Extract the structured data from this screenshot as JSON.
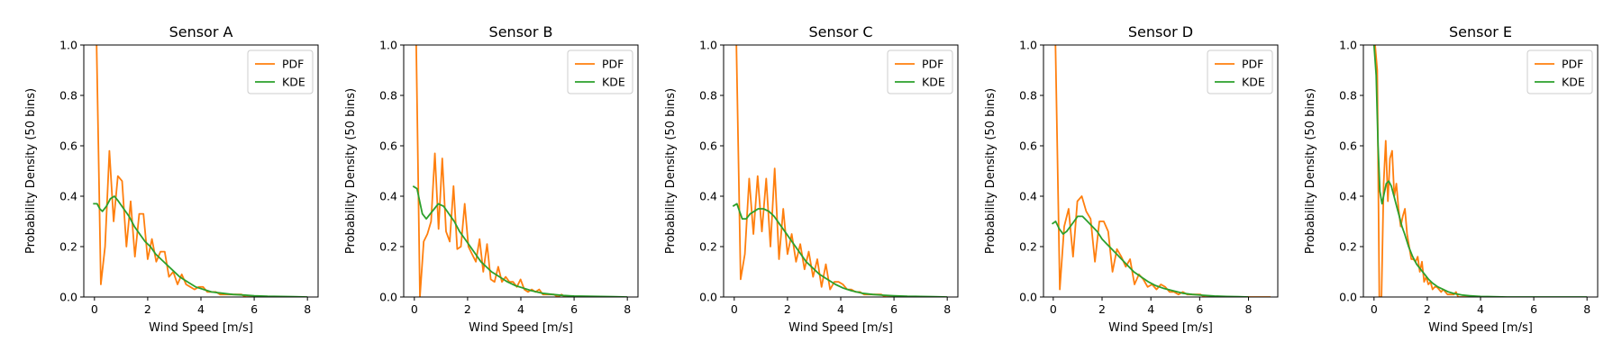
{
  "colors": {
    "pdf": "#ff7f0e",
    "kde": "#2ca02c",
    "axes": "#000000",
    "legend_border": "#cccccc"
  },
  "chart_data": [
    {
      "type": "line",
      "title": "Sensor A",
      "xlabel": "Wind Speed [m/s]",
      "ylabel": "Probability Density (50 bins)",
      "xlim": [
        -0.4,
        8.4
      ],
      "ylim": [
        0,
        1.0
      ],
      "xticks": [
        0,
        2,
        4,
        6,
        8
      ],
      "yticks": [
        0.0,
        0.2,
        0.4,
        0.6,
        0.8,
        1.0
      ],
      "tick_labels_x": [
        "0",
        "2",
        "4",
        "6",
        "8"
      ],
      "tick_labels_y": [
        "0.0",
        "0.2",
        "0.4",
        "0.6",
        "0.8",
        "1.0"
      ],
      "legend": "top-right",
      "grid": false,
      "series": [
        {
          "name": "PDF",
          "color_key": "pdf",
          "x": [
            0.08,
            0.24,
            0.4,
            0.56,
            0.72,
            0.88,
            1.04,
            1.2,
            1.36,
            1.52,
            1.68,
            1.84,
            2.0,
            2.16,
            2.32,
            2.48,
            2.64,
            2.8,
            2.96,
            3.12,
            3.28,
            3.44,
            3.6,
            3.76,
            3.92,
            4.08,
            4.24,
            4.4,
            4.56,
            4.72,
            4.88,
            5.04,
            5.2,
            5.36,
            5.52,
            5.68,
            5.84,
            6.0,
            6.16,
            6.32,
            6.48,
            6.64,
            6.8,
            6.96,
            7.12,
            7.28,
            7.44,
            7.6,
            7.76,
            7.92
          ],
          "y": [
            1.0,
            0.05,
            0.2,
            0.58,
            0.3,
            0.48,
            0.46,
            0.2,
            0.38,
            0.16,
            0.33,
            0.33,
            0.15,
            0.23,
            0.14,
            0.18,
            0.18,
            0.08,
            0.1,
            0.05,
            0.09,
            0.05,
            0.04,
            0.03,
            0.04,
            0.04,
            0.02,
            0.02,
            0.02,
            0.01,
            0.01,
            0.01,
            0.01,
            0.01,
            0.01,
            0.0,
            0.0,
            0.0,
            0.0,
            0.0,
            0.0,
            0.0,
            0.0,
            0.0,
            0.0,
            0.0,
            0.0,
            0.0,
            0.0,
            0.0
          ]
        },
        {
          "name": "KDE",
          "color_key": "kde",
          "x": [
            -0.05,
            0.1,
            0.2,
            0.3,
            0.45,
            0.6,
            0.75,
            0.9,
            1.1,
            1.3,
            1.5,
            1.7,
            1.9,
            2.1,
            2.3,
            2.5,
            2.7,
            2.9,
            3.2,
            3.5,
            3.8,
            4.1,
            4.4,
            4.8,
            5.2,
            5.6,
            6.0,
            6.5,
            7.0,
            7.5,
            8.0
          ],
          "y": [
            0.37,
            0.37,
            0.35,
            0.34,
            0.36,
            0.39,
            0.4,
            0.38,
            0.35,
            0.32,
            0.28,
            0.25,
            0.22,
            0.2,
            0.17,
            0.15,
            0.13,
            0.11,
            0.08,
            0.06,
            0.04,
            0.03,
            0.02,
            0.015,
            0.01,
            0.008,
            0.005,
            0.003,
            0.002,
            0.001,
            0.0
          ]
        }
      ]
    },
    {
      "type": "line",
      "title": "Sensor B",
      "xlabel": "Wind Speed [m/s]",
      "ylabel": "Probability Density (50 bins)",
      "xlim": [
        -0.4,
        8.4
      ],
      "ylim": [
        0,
        1.0
      ],
      "xticks": [
        0,
        2,
        4,
        6,
        8
      ],
      "yticks": [
        0.0,
        0.2,
        0.4,
        0.6,
        0.8,
        1.0
      ],
      "tick_labels_x": [
        "0",
        "2",
        "4",
        "6",
        "8"
      ],
      "tick_labels_y": [
        "0.0",
        "0.2",
        "0.4",
        "0.6",
        "0.8",
        "1.0"
      ],
      "legend": "top-right",
      "grid": false,
      "series": [
        {
          "name": "PDF",
          "color_key": "pdf",
          "x": [
            0.07,
            0.21,
            0.35,
            0.49,
            0.63,
            0.77,
            0.91,
            1.05,
            1.19,
            1.33,
            1.47,
            1.61,
            1.75,
            1.89,
            2.03,
            2.17,
            2.31,
            2.45,
            2.59,
            2.73,
            2.87,
            3.01,
            3.15,
            3.29,
            3.43,
            3.57,
            3.71,
            3.85,
            3.99,
            4.13,
            4.27,
            4.41,
            4.55,
            4.69,
            4.83,
            4.97,
            5.11,
            5.25,
            5.39,
            5.53,
            5.67,
            5.81,
            5.95,
            6.09,
            6.23,
            6.37,
            6.51,
            6.65,
            6.79,
            6.93
          ],
          "y": [
            1.0,
            0.0,
            0.22,
            0.25,
            0.3,
            0.57,
            0.27,
            0.55,
            0.26,
            0.22,
            0.44,
            0.19,
            0.2,
            0.37,
            0.2,
            0.17,
            0.14,
            0.23,
            0.1,
            0.21,
            0.07,
            0.06,
            0.12,
            0.06,
            0.08,
            0.06,
            0.06,
            0.04,
            0.07,
            0.03,
            0.02,
            0.03,
            0.02,
            0.03,
            0.01,
            0.01,
            0.01,
            0.01,
            0.0,
            0.01,
            0.0,
            0.0,
            0.0,
            0.0,
            0.0,
            0.0,
            0.0,
            0.0,
            0.0,
            0.0
          ]
        },
        {
          "name": "KDE",
          "color_key": "kde",
          "x": [
            -0.05,
            0.1,
            0.2,
            0.3,
            0.45,
            0.6,
            0.75,
            0.9,
            1.1,
            1.3,
            1.5,
            1.7,
            1.9,
            2.1,
            2.3,
            2.5,
            2.7,
            2.9,
            3.2,
            3.5,
            3.8,
            4.1,
            4.4,
            4.8,
            5.2,
            5.6,
            6.0,
            6.5,
            7.0,
            7.5,
            8.0
          ],
          "y": [
            0.44,
            0.43,
            0.38,
            0.33,
            0.31,
            0.33,
            0.35,
            0.37,
            0.36,
            0.33,
            0.3,
            0.26,
            0.23,
            0.2,
            0.17,
            0.14,
            0.12,
            0.1,
            0.08,
            0.06,
            0.045,
            0.035,
            0.025,
            0.015,
            0.01,
            0.006,
            0.004,
            0.003,
            0.002,
            0.001,
            0.0
          ]
        }
      ]
    },
    {
      "type": "line",
      "title": "Sensor C",
      "xlabel": "Wind Speed [m/s]",
      "ylabel": "Probability Density (50 bins)",
      "xlim": [
        -0.4,
        8.4
      ],
      "ylim": [
        0,
        1.0
      ],
      "xticks": [
        0,
        2,
        4,
        6,
        8
      ],
      "yticks": [
        0.0,
        0.2,
        0.4,
        0.6,
        0.8,
        1.0
      ],
      "tick_labels_x": [
        "0",
        "2",
        "4",
        "6",
        "8"
      ],
      "tick_labels_y": [
        "0.0",
        "0.2",
        "0.4",
        "0.6",
        "0.8",
        "1.0"
      ],
      "legend": "top-right",
      "grid": false,
      "series": [
        {
          "name": "PDF",
          "color_key": "pdf",
          "x": [
            0.08,
            0.24,
            0.4,
            0.56,
            0.72,
            0.88,
            1.04,
            1.2,
            1.36,
            1.52,
            1.68,
            1.84,
            2.0,
            2.16,
            2.32,
            2.48,
            2.64,
            2.8,
            2.96,
            3.12,
            3.28,
            3.44,
            3.6,
            3.76,
            3.92,
            4.08,
            4.24,
            4.4,
            4.56,
            4.72,
            4.88,
            5.04,
            5.2,
            5.36,
            5.52,
            5.68,
            5.84,
            6.0,
            6.16,
            6.32,
            6.48,
            6.64,
            6.8,
            6.96,
            7.12,
            7.28,
            7.44,
            7.6,
            7.76,
            7.92
          ],
          "y": [
            1.0,
            0.07,
            0.17,
            0.47,
            0.25,
            0.48,
            0.26,
            0.47,
            0.2,
            0.51,
            0.15,
            0.35,
            0.17,
            0.25,
            0.14,
            0.21,
            0.11,
            0.18,
            0.08,
            0.15,
            0.04,
            0.13,
            0.03,
            0.06,
            0.06,
            0.05,
            0.03,
            0.03,
            0.02,
            0.02,
            0.01,
            0.01,
            0.01,
            0.01,
            0.01,
            0.0,
            0.0,
            0.0,
            0.0,
            0.0,
            0.0,
            0.0,
            0.0,
            0.0,
            0.0,
            0.0,
            0.0,
            0.0,
            0.0,
            0.0
          ]
        },
        {
          "name": "KDE",
          "color_key": "kde",
          "x": [
            -0.05,
            0.1,
            0.2,
            0.3,
            0.45,
            0.6,
            0.75,
            0.9,
            1.1,
            1.3,
            1.5,
            1.7,
            1.9,
            2.1,
            2.3,
            2.5,
            2.7,
            2.9,
            3.2,
            3.5,
            3.8,
            4.1,
            4.4,
            4.8,
            5.2,
            5.6,
            6.0,
            6.5,
            7.0,
            7.5,
            8.0
          ],
          "y": [
            0.36,
            0.37,
            0.34,
            0.31,
            0.31,
            0.33,
            0.34,
            0.35,
            0.35,
            0.34,
            0.32,
            0.29,
            0.26,
            0.23,
            0.2,
            0.17,
            0.14,
            0.12,
            0.09,
            0.07,
            0.05,
            0.035,
            0.025,
            0.015,
            0.01,
            0.007,
            0.005,
            0.003,
            0.002,
            0.001,
            0.0
          ]
        }
      ]
    },
    {
      "type": "line",
      "title": "Sensor D",
      "xlabel": "Wind Speed [m/s]",
      "ylabel": "Probability Density (50 bins)",
      "xlim": [
        -0.4,
        9.2
      ],
      "ylim": [
        0,
        1.0
      ],
      "xticks": [
        0,
        2,
        4,
        6,
        8
      ],
      "yticks": [
        0.0,
        0.2,
        0.4,
        0.6,
        0.8,
        1.0
      ],
      "tick_labels_x": [
        "0",
        "2",
        "4",
        "6",
        "8"
      ],
      "tick_labels_y": [
        "0.0",
        "0.2",
        "0.4",
        "0.6",
        "0.8",
        "1.0"
      ],
      "legend": "top-right",
      "grid": false,
      "series": [
        {
          "name": "PDF",
          "color_key": "pdf",
          "x": [
            0.09,
            0.27,
            0.45,
            0.63,
            0.81,
            0.99,
            1.17,
            1.35,
            1.53,
            1.71,
            1.89,
            2.07,
            2.25,
            2.43,
            2.61,
            2.79,
            2.97,
            3.15,
            3.33,
            3.51,
            3.69,
            3.87,
            4.05,
            4.23,
            4.41,
            4.59,
            4.77,
            4.95,
            5.13,
            5.31,
            5.49,
            5.67,
            5.85,
            6.03,
            6.21,
            6.39,
            6.57,
            6.75,
            6.93,
            7.11,
            7.29,
            7.47,
            7.65,
            7.83,
            8.01,
            8.19,
            8.37,
            8.55,
            8.73,
            8.91
          ],
          "y": [
            1.0,
            0.03,
            0.28,
            0.35,
            0.16,
            0.38,
            0.4,
            0.34,
            0.31,
            0.14,
            0.3,
            0.3,
            0.26,
            0.1,
            0.19,
            0.16,
            0.12,
            0.15,
            0.05,
            0.09,
            0.07,
            0.04,
            0.05,
            0.03,
            0.05,
            0.04,
            0.02,
            0.02,
            0.01,
            0.02,
            0.01,
            0.01,
            0.01,
            0.01,
            0.0,
            0.0,
            0.0,
            0.0,
            0.0,
            0.0,
            0.0,
            0.0,
            0.0,
            0.0,
            0.0,
            0.0,
            0.0,
            0.0,
            0.0,
            0.0
          ]
        },
        {
          "name": "KDE",
          "color_key": "kde",
          "x": [
            -0.05,
            0.1,
            0.25,
            0.4,
            0.55,
            0.7,
            0.85,
            1.0,
            1.2,
            1.4,
            1.6,
            1.8,
            2.0,
            2.2,
            2.4,
            2.6,
            2.8,
            3.0,
            3.3,
            3.6,
            3.9,
            4.2,
            4.5,
            4.9,
            5.3,
            5.7,
            6.1,
            6.6,
            7.1,
            7.6,
            8.0
          ],
          "y": [
            0.29,
            0.3,
            0.27,
            0.25,
            0.26,
            0.28,
            0.3,
            0.32,
            0.32,
            0.3,
            0.28,
            0.26,
            0.23,
            0.21,
            0.19,
            0.17,
            0.15,
            0.13,
            0.1,
            0.08,
            0.06,
            0.045,
            0.035,
            0.025,
            0.015,
            0.01,
            0.007,
            0.004,
            0.002,
            0.001,
            0.0
          ]
        }
      ]
    },
    {
      "type": "line",
      "title": "Sensor E",
      "xlabel": "Wind Speed [m/s]",
      "ylabel": "Probability Density (50 bins)",
      "xlim": [
        -0.4,
        8.4
      ],
      "ylim": [
        0,
        1.0
      ],
      "xticks": [
        0,
        2,
        4,
        6,
        8
      ],
      "yticks": [
        0.0,
        0.2,
        0.4,
        0.6,
        0.8,
        1.0
      ],
      "tick_labels_x": [
        "0",
        "2",
        "4",
        "6",
        "8"
      ],
      "tick_labels_y": [
        "0.0",
        "0.2",
        "0.4",
        "0.6",
        "0.8",
        "1.0"
      ],
      "legend": "top-right",
      "grid": false,
      "series": [
        {
          "name": "PDF",
          "color_key": "pdf",
          "x": [
            0.04,
            0.12,
            0.2,
            0.28,
            0.36,
            0.44,
            0.52,
            0.6,
            0.68,
            0.76,
            0.84,
            0.92,
            1.0,
            1.08,
            1.16,
            1.24,
            1.32,
            1.4,
            1.48,
            1.56,
            1.64,
            1.72,
            1.8,
            1.88,
            1.96,
            2.04,
            2.12,
            2.2,
            2.28,
            2.36,
            2.44,
            2.52,
            2.6,
            2.68,
            2.76,
            2.84,
            2.92,
            3.0,
            3.08,
            3.16,
            3.24,
            3.32,
            3.4,
            3.48,
            3.56,
            3.64,
            3.72,
            3.8,
            3.88,
            3.96
          ],
          "y": [
            1.0,
            0.9,
            0.0,
            0.0,
            0.45,
            0.62,
            0.38,
            0.55,
            0.58,
            0.4,
            0.45,
            0.35,
            0.28,
            0.32,
            0.35,
            0.25,
            0.2,
            0.15,
            0.15,
            0.14,
            0.16,
            0.1,
            0.14,
            0.06,
            0.08,
            0.05,
            0.06,
            0.03,
            0.04,
            0.04,
            0.03,
            0.02,
            0.03,
            0.02,
            0.01,
            0.01,
            0.01,
            0.01,
            0.02,
            0.0,
            0.0,
            0.0,
            0.0,
            0.0,
            0.0,
            0.0,
            0.0,
            0.0,
            0.0,
            0.0
          ]
        },
        {
          "name": "KDE",
          "color_key": "kde",
          "x": [
            0.0,
            0.08,
            0.15,
            0.22,
            0.3,
            0.38,
            0.46,
            0.55,
            0.65,
            0.75,
            0.85,
            0.95,
            1.05,
            1.15,
            1.3,
            1.45,
            1.6,
            1.75,
            1.9,
            2.05,
            2.2,
            2.4,
            2.6,
            2.8,
            3.0,
            3.3,
            3.6,
            4.0,
            5.0,
            6.5,
            8.0
          ],
          "y": [
            1.0,
            0.88,
            0.6,
            0.42,
            0.37,
            0.41,
            0.45,
            0.46,
            0.44,
            0.4,
            0.36,
            0.32,
            0.28,
            0.25,
            0.2,
            0.16,
            0.13,
            0.11,
            0.09,
            0.07,
            0.055,
            0.04,
            0.03,
            0.02,
            0.014,
            0.008,
            0.005,
            0.002,
            0.0,
            0.0,
            0.0
          ]
        }
      ]
    }
  ]
}
